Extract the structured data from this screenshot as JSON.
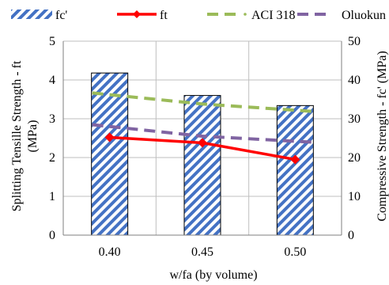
{
  "chart_data": {
    "type": "bar",
    "categories": [
      "0.40",
      "0.45",
      "0.50"
    ],
    "xlabel": "w/fa (by volume)",
    "ylabel_left": "Splitting Tensille Strength - ft\n(MPa)",
    "ylabel_right": "Compressive Strength - fc' (MPa)",
    "ylim_left": [
      0,
      5
    ],
    "ylim_right": [
      0,
      50
    ],
    "yticks_left": [
      "0",
      "1",
      "2",
      "3",
      "4",
      "5"
    ],
    "yticks_right": [
      "0",
      "10",
      "20",
      "30",
      "40",
      "50"
    ],
    "grid": true,
    "legend_position": "top",
    "series": [
      {
        "name": "fc'",
        "kind": "bar",
        "axis": "right",
        "values": [
          41.8,
          36,
          33.4
        ],
        "color": "#4472c4"
      },
      {
        "name": "ft",
        "kind": "line",
        "axis": "left",
        "values": [
          2.52,
          2.38,
          1.95
        ],
        "color": "#ff0000",
        "marker": "diamond"
      },
      {
        "name": "ACI 318",
        "kind": "line",
        "axis": "left",
        "values": [
          3.62,
          3.38,
          3.22
        ],
        "color": "#9bbb59",
        "dash": true
      },
      {
        "name": "Oluokun",
        "kind": "line",
        "axis": "left",
        "values": [
          2.8,
          2.55,
          2.42
        ],
        "color": "#8064a2",
        "dash": true
      }
    ]
  }
}
